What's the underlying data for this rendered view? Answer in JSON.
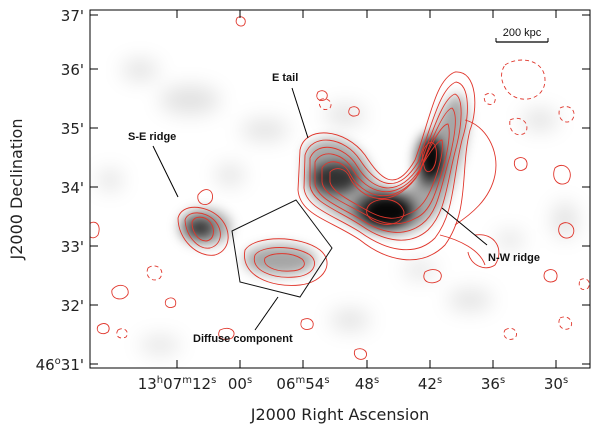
{
  "axes": {
    "xlabel": "J2000 Right Ascension",
    "ylabel": "J2000 Declination",
    "x_ticks": [
      {
        "h": "13",
        "hu": "h",
        "m": "07",
        "mu": "m",
        "s": "12",
        "su": "s"
      },
      {
        "s": "00",
        "su": "s"
      },
      {
        "m": "06",
        "mu": "m",
        "s": "54",
        "su": "s"
      },
      {
        "s": "48",
        "su": "s"
      },
      {
        "s": "42",
        "su": "s"
      },
      {
        "s": "36",
        "su": "s"
      },
      {
        "s": "30",
        "su": "s"
      }
    ],
    "y_ticks": [
      {
        "deg": "46",
        "du": "o",
        "arcmin": "31",
        "mu": "'"
      },
      {
        "arcmin": "32",
        "mu": "'"
      },
      {
        "arcmin": "33",
        "mu": "'"
      },
      {
        "arcmin": "34",
        "mu": "'"
      },
      {
        "arcmin": "35",
        "mu": "'"
      },
      {
        "arcmin": "36",
        "mu": "'"
      },
      {
        "arcmin": "37",
        "mu": "'"
      }
    ]
  },
  "scale_bar": {
    "label": "200 kpc"
  },
  "annotations": {
    "se_ridge": "S-E ridge",
    "e_tail": "E tail",
    "nw_ridge": "N-W ridge",
    "diffuse": "Diffuse component"
  },
  "colors": {
    "contour": "#e0362c",
    "image_gray": "#1a1a1a",
    "frame": "#000000"
  }
}
